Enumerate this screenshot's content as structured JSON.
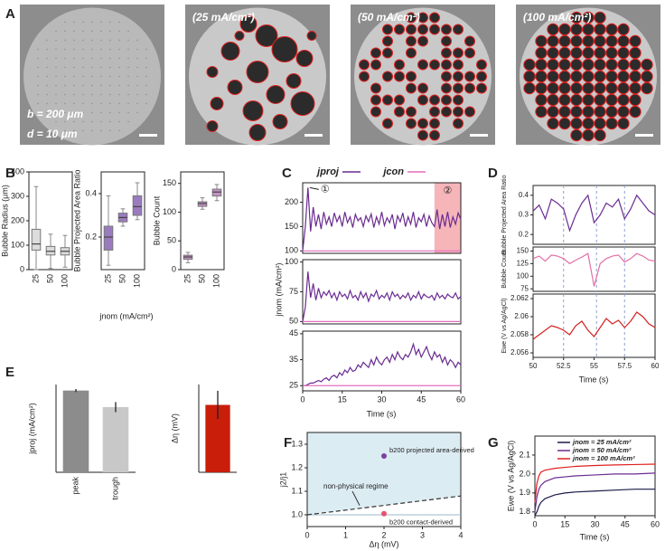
{
  "panel_a": {
    "letter": "A",
    "scale_labels": [
      "b = 200 μm",
      "d = 10 μm"
    ],
    "captions": [
      "(25 mA/cm²)",
      "(50 mA/cm²)",
      "(100 mA/cm²)"
    ]
  },
  "chart_data": [
    {
      "letter": "B",
      "type": "box",
      "ylabel": "Bubble Radius (μm)",
      "xlabel": "jnom (mA/cm²)",
      "categories": [
        "25",
        "50",
        "100"
      ],
      "color": "#dcdcdc",
      "ylim": [
        0,
        400
      ],
      "yticks": [
        0,
        100,
        200,
        300,
        400
      ],
      "boxes": [
        {
          "min": 0,
          "q1": 80,
          "median": 105,
          "q3": 165,
          "max": 340
        },
        {
          "min": 5,
          "q1": 60,
          "median": 75,
          "q3": 95,
          "max": 145
        },
        {
          "min": 10,
          "q1": 60,
          "median": 75,
          "q3": 90,
          "max": 140
        }
      ]
    },
    {
      "type": "box",
      "ylabel": "Bubble Projected Area Ratio",
      "categories": [
        "25",
        "50",
        "100"
      ],
      "color": "#9b7bbf",
      "ylim": [
        0.05,
        0.5
      ],
      "yticks": [
        0.2,
        0.4
      ],
      "boxes": [
        {
          "min": 0.07,
          "q1": 0.14,
          "median": 0.2,
          "q3": 0.25,
          "max": 0.39
        },
        {
          "min": 0.25,
          "q1": 0.27,
          "median": 0.29,
          "q3": 0.31,
          "max": 0.33
        },
        {
          "min": 0.28,
          "q1": 0.3,
          "median": 0.34,
          "q3": 0.39,
          "max": 0.45
        }
      ]
    },
    {
      "type": "box",
      "ylabel": "Bubble Count",
      "categories": [
        "25",
        "50",
        "100"
      ],
      "color": "#c58fc6",
      "ylim": [
        0,
        170
      ],
      "yticks": [
        0,
        50,
        100,
        150
      ],
      "boxes": [
        {
          "min": 12,
          "q1": 18,
          "median": 22,
          "q3": 25,
          "max": 30
        },
        {
          "min": 105,
          "q1": 110,
          "median": 115,
          "q3": 118,
          "max": 125
        },
        {
          "min": 120,
          "q1": 128,
          "median": 135,
          "q3": 140,
          "max": 148
        }
      ]
    },
    {
      "letter": "C",
      "type": "line",
      "xlim": [
        0,
        60
      ],
      "ylim": [
        95,
        240
      ],
      "yticks": [
        100,
        150,
        200
      ],
      "annotations": [
        "①",
        "②"
      ],
      "highlight": [
        50,
        60
      ],
      "series": [
        {
          "name": "jproj",
          "color": "#6a2c91",
          "x": [
            0,
            1,
            2,
            3,
            4,
            5,
            6,
            7,
            8,
            9,
            10,
            11,
            12,
            13,
            14,
            15,
            16,
            17,
            18,
            19,
            20,
            21,
            22,
            23,
            24,
            25,
            26,
            27,
            28,
            29,
            30,
            31,
            32,
            33,
            34,
            35,
            36,
            37,
            38,
            39,
            40,
            41,
            42,
            43,
            44,
            45,
            46,
            47,
            48,
            49,
            50,
            51,
            52,
            53,
            54,
            55,
            56,
            57,
            58,
            59,
            60
          ],
          "values": [
            100,
            150,
            230,
            140,
            190,
            150,
            175,
            145,
            180,
            155,
            170,
            150,
            178,
            160,
            172,
            150,
            180,
            158,
            170,
            148,
            175,
            162,
            168,
            150,
            172,
            160,
            176,
            148,
            170,
            155,
            180,
            152,
            168,
            158,
            175,
            145,
            172,
            160,
            178,
            150,
            170,
            155,
            180,
            148,
            168,
            160,
            175,
            150,
            172,
            158,
            150,
            185,
            145,
            175,
            150,
            180,
            148,
            170,
            155,
            178,
            165
          ]
        },
        {
          "name": "jcon",
          "color": "#e36fc0",
          "x": [
            0,
            60
          ],
          "values": [
            100,
            100
          ]
        }
      ]
    },
    {
      "type": "line",
      "ylabel": "jnom (mA/cm²)",
      "xlim": [
        0,
        60
      ],
      "ylim": [
        48,
        102
      ],
      "yticks": [
        50,
        75,
        100
      ],
      "series": [
        {
          "color": "#6a2c91",
          "x": [
            0,
            1,
            2,
            3,
            4,
            5,
            6,
            7,
            8,
            9,
            10,
            11,
            12,
            13,
            14,
            15,
            16,
            17,
            18,
            19,
            20,
            21,
            22,
            23,
            24,
            25,
            26,
            27,
            28,
            29,
            30,
            31,
            32,
            33,
            34,
            35,
            36,
            37,
            38,
            39,
            40,
            41,
            42,
            43,
            44,
            45,
            46,
            47,
            48,
            49,
            50,
            51,
            52,
            53,
            54,
            55,
            56,
            57,
            58,
            59,
            60
          ],
          "values": [
            50,
            62,
            92,
            70,
            82,
            68,
            78,
            70,
            75,
            72,
            76,
            70,
            74,
            68,
            75,
            71,
            73,
            69,
            76,
            70,
            72,
            68,
            75,
            70,
            74,
            67,
            73,
            71,
            76,
            69,
            72,
            70,
            74,
            68,
            75,
            71,
            73,
            69,
            72,
            70,
            74,
            68,
            72,
            70,
            75,
            69,
            73,
            71,
            70,
            72,
            68,
            74,
            70,
            72,
            69,
            73,
            71,
            70,
            74,
            69,
            71
          ]
        },
        {
          "color": "#e36fc0",
          "x": [
            0,
            60
          ],
          "values": [
            50,
            50
          ]
        }
      ]
    },
    {
      "type": "line",
      "xlabel": "Time (s)",
      "xlim": [
        0,
        60
      ],
      "xticks": [
        0,
        15,
        30,
        45,
        60
      ],
      "ylim": [
        23,
        46
      ],
      "yticks": [
        25,
        35,
        45
      ],
      "series": [
        {
          "color": "#6a2c91",
          "x": [
            0,
            1,
            2,
            3,
            4,
            5,
            6,
            7,
            8,
            9,
            10,
            11,
            12,
            13,
            14,
            15,
            16,
            17,
            18,
            19,
            20,
            21,
            22,
            23,
            24,
            25,
            26,
            27,
            28,
            29,
            30,
            31,
            32,
            33,
            34,
            35,
            36,
            37,
            38,
            39,
            40,
            41,
            42,
            43,
            44,
            45,
            46,
            47,
            48,
            49,
            50,
            51,
            52,
            53,
            54,
            55,
            56,
            57,
            58,
            59,
            60
          ],
          "values": [
            25,
            25,
            25.5,
            26,
            26,
            26.5,
            27,
            26.5,
            27.5,
            28,
            27,
            28.5,
            29,
            28,
            30,
            29,
            31,
            30,
            32,
            30.5,
            31,
            33,
            32,
            34,
            33,
            32,
            35,
            33,
            36,
            34,
            33,
            35,
            36,
            34,
            37,
            35,
            38,
            36,
            35,
            37,
            36,
            38,
            41,
            37,
            39,
            36,
            38,
            40,
            37,
            35,
            38,
            36,
            37,
            34,
            36,
            33,
            35,
            34,
            32,
            34,
            33
          ]
        },
        {
          "color": "#e36fc0",
          "x": [
            0,
            60
          ],
          "values": [
            25,
            25
          ]
        }
      ]
    },
    {
      "letter": "D",
      "type": "line",
      "ylabel": "Bubble Projected Area Ratio",
      "xlim": [
        50,
        60
      ],
      "vlines": [
        52.5,
        55.2,
        57.5
      ],
      "ylim": [
        0.15,
        0.45
      ],
      "yticks": [
        0.2,
        0.3,
        0.4
      ],
      "series": [
        {
          "color": "#6a2c91",
          "x": [
            50,
            50.5,
            51,
            51.5,
            52,
            52.5,
            53,
            53.5,
            54,
            54.5,
            55,
            55.5,
            56,
            56.5,
            57,
            57.5,
            58,
            58.5,
            59,
            59.5,
            60
          ],
          "values": [
            0.32,
            0.35,
            0.28,
            0.38,
            0.36,
            0.33,
            0.22,
            0.3,
            0.36,
            0.4,
            0.26,
            0.3,
            0.36,
            0.34,
            0.38,
            0.28,
            0.33,
            0.4,
            0.36,
            0.32,
            0.3
          ]
        }
      ]
    },
    {
      "type": "line",
      "ylabel": "Bubble Count",
      "xlim": [
        50,
        60
      ],
      "vlines": [
        52.5,
        55.2,
        57.5
      ],
      "ylim": [
        70,
        158
      ],
      "yticks": [
        75,
        100,
        125,
        150
      ],
      "series": [
        {
          "color": "#e36fa6",
          "x": [
            50,
            50.5,
            51,
            51.5,
            52,
            52.5,
            53,
            53.5,
            54,
            54.5,
            55,
            55.5,
            56,
            56.5,
            57,
            57.5,
            58,
            58.5,
            59,
            59.5,
            60
          ],
          "values": [
            135,
            140,
            130,
            142,
            140,
            135,
            125,
            132,
            138,
            145,
            80,
            125,
            135,
            140,
            142,
            128,
            135,
            145,
            140,
            132,
            130
          ]
        }
      ]
    },
    {
      "type": "line",
      "ylabel": "Ewe (V vs Ag/AgCl)",
      "xlabel": "Time (s)",
      "xlim": [
        50,
        60
      ],
      "xticks": [
        50,
        52.5,
        55,
        57.5,
        60
      ],
      "vlines": [
        52.5,
        55.2,
        57.5
      ],
      "ylim": [
        2.0555,
        2.0625
      ],
      "yticks": [
        2.056,
        2.058,
        2.06,
        2.062
      ],
      "series": [
        {
          "color": "#d42020",
          "x": [
            50,
            50.5,
            51,
            51.5,
            52,
            52.5,
            53,
            53.5,
            54,
            54.5,
            55,
            55.5,
            56,
            56.5,
            57,
            57.5,
            58,
            58.5,
            59,
            59.5,
            60
          ],
          "values": [
            2.0575,
            2.058,
            2.0585,
            2.059,
            2.0588,
            2.0585,
            2.058,
            2.059,
            2.0595,
            2.0585,
            2.0578,
            2.0588,
            2.0598,
            2.0592,
            2.0596,
            2.0588,
            2.0595,
            2.0605,
            2.06,
            2.0592,
            2.0588
          ]
        }
      ]
    },
    {
      "letter": "E",
      "type": "bar",
      "ylabel": "jproj (mA/cm²)",
      "categories": [
        "peak",
        "trough"
      ],
      "values": [
        163,
        130
      ],
      "errors": [
        3,
        10
      ],
      "colors": [
        "#8c8c8c",
        "#c8c8c8"
      ],
      "ylim": [
        0,
        175
      ]
    },
    {
      "type": "bar",
      "ylabel": "Δη (mV)",
      "categories": [
        null
      ],
      "values": [
        2.15
      ],
      "errors": [
        0.45
      ],
      "colors": [
        "#c81e0a"
      ],
      "ylim": [
        0,
        2.8
      ]
    },
    {
      "letter": "F",
      "type": "scatter",
      "xlabel": "Δη (mV)",
      "ylabel": "j2/j1",
      "xlim": [
        0,
        4
      ],
      "ylim": [
        0.95,
        1.35
      ],
      "xticks": [
        0,
        1,
        2,
        3,
        4
      ],
      "yticks": [
        {
          "value": 1,
          "label": "1.0"
        },
        1.1,
        1.2,
        1.3
      ],
      "boundary": {
        "x": [
          0,
          4
        ],
        "values": [
          1,
          1.08
        ]
      },
      "baseline": 1,
      "region_label": "non-physical regime",
      "series": [
        {
          "name": "b200 projected area-derived",
          "color": "#7b3f9e",
          "x": [
            2
          ],
          "values": [
            1.25
          ]
        },
        {
          "name": "b200 contact-derived",
          "color": "#e8506e",
          "x": [
            2
          ],
          "values": [
            1.005
          ]
        }
      ]
    },
    {
      "letter": "G",
      "type": "line",
      "ylabel": "Ewe (V vs Ag/AgCl)",
      "xlabel": "Time (s)",
      "xlim": [
        0,
        60
      ],
      "xticks": [
        0,
        15,
        30,
        45,
        60
      ],
      "ylim": [
        1.78,
        2.2
      ],
      "yticks": [
        1.8,
        1.9,
        {
          "value": 2,
          "label": "2.0"
        },
        2.1
      ],
      "legend": "upper right",
      "series": [
        {
          "name": "jnom = 25 mA/cm²",
          "color": "#1a1a4a",
          "x": [
            0,
            1,
            2,
            3,
            5,
            10,
            15,
            20,
            30,
            40,
            50,
            60
          ],
          "values": [
            1.78,
            1.8,
            1.83,
            1.85,
            1.87,
            1.89,
            1.9,
            1.905,
            1.91,
            1.915,
            1.92,
            1.92
          ]
        },
        {
          "name": "jnom = 50 mA/cm²",
          "color": "#6a2c91",
          "x": [
            0,
            1,
            2,
            3,
            5,
            10,
            15,
            20,
            30,
            40,
            50,
            60
          ],
          "values": [
            1.8,
            1.88,
            1.92,
            1.94,
            1.96,
            1.98,
            1.985,
            1.99,
            1.995,
            2,
            2,
            2.005
          ]
        },
        {
          "name": "jnom = 100 mA/cm²",
          "color": "#e02020",
          "x": [
            0,
            1,
            2,
            3,
            5,
            10,
            15,
            20,
            30,
            40,
            50,
            60
          ],
          "values": [
            1.85,
            1.95,
            1.99,
            2.01,
            2.02,
            2.03,
            2.035,
            2.04,
            2.045,
            2.048,
            2.05,
            2.052
          ]
        }
      ]
    }
  ]
}
